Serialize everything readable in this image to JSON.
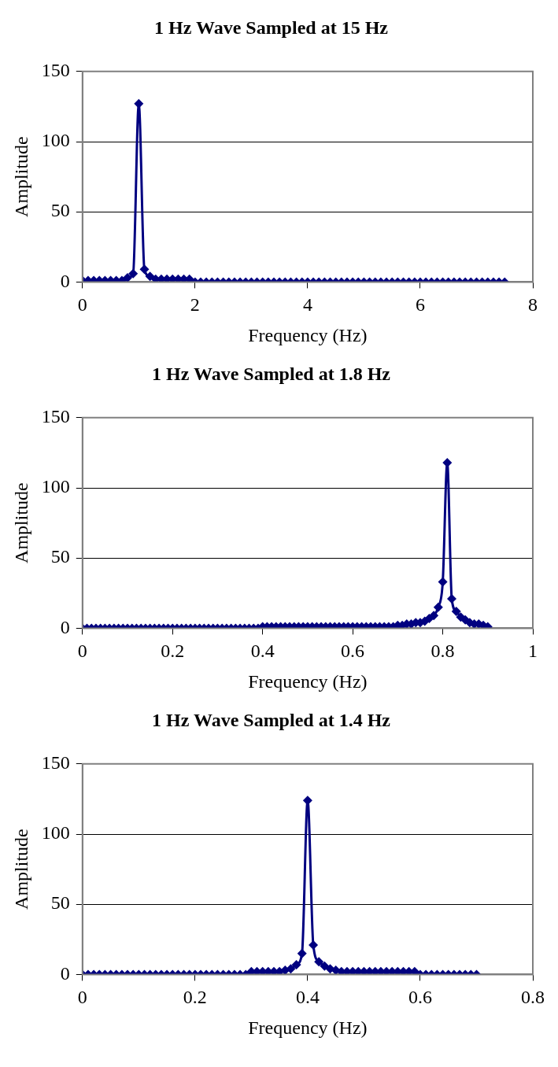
{
  "chart_data": [
    {
      "type": "line",
      "title": "1 Hz Wave Sampled at 15 Hz",
      "xlabel": "Frequency (Hz)",
      "ylabel": "Amplitude",
      "color": "#000080",
      "marker": "diamond",
      "line_style": "solid",
      "grid": "y",
      "legend": false,
      "xlim": [
        0,
        8
      ],
      "xticks": [
        0,
        2,
        4,
        6,
        8
      ],
      "ylim": [
        0,
        150
      ],
      "yticks": [
        0,
        50,
        100,
        150
      ],
      "x": [
        0,
        0.1,
        0.2,
        0.3,
        0.4,
        0.5,
        0.6,
        0.7,
        0.8,
        0.9,
        1.0,
        1.1,
        1.2,
        1.3,
        1.4,
        1.5,
        1.6,
        1.7,
        1.8,
        1.9,
        2.0,
        2.1,
        2.2,
        2.3,
        2.4,
        2.5,
        2.6,
        2.7,
        2.8,
        2.9,
        3.0,
        3.1,
        3.2,
        3.3,
        3.4,
        3.5,
        3.6,
        3.7,
        3.8,
        3.9,
        4.0,
        4.1,
        4.2,
        4.3,
        4.4,
        4.5,
        4.6,
        4.7,
        4.8,
        4.9,
        5.0,
        5.1,
        5.2,
        5.3,
        5.4,
        5.5,
        5.6,
        5.7,
        5.8,
        5.9,
        6.0,
        6.1,
        6.2,
        6.3,
        6.4,
        6.5,
        6.6,
        6.7,
        6.8,
        6.9,
        7.0,
        7.1,
        7.2,
        7.3,
        7.4,
        7.5
      ],
      "values": [
        1,
        1,
        1,
        1,
        1,
        1,
        1,
        1,
        3,
        6,
        127,
        9,
        4,
        2,
        2,
        2,
        2,
        2,
        2,
        2,
        0,
        0,
        0,
        0,
        0,
        0,
        0,
        0,
        0,
        0,
        0,
        0,
        0,
        0,
        0,
        0,
        0,
        0,
        0,
        0,
        0,
        0,
        0,
        0,
        0,
        0,
        0,
        0,
        0,
        0,
        0,
        0,
        0,
        0,
        0,
        0,
        0,
        0,
        0,
        0,
        0,
        0,
        0,
        0,
        0,
        0,
        0,
        0,
        0,
        0,
        0,
        0,
        0,
        0,
        0,
        0
      ]
    },
    {
      "type": "line",
      "title": "1 Hz Wave Sampled at 1.8 Hz",
      "xlabel": "Frequency (Hz)",
      "ylabel": "Amplitude",
      "color": "#000080",
      "marker": "diamond",
      "line_style": "solid",
      "grid": "y",
      "legend": false,
      "xlim": [
        0,
        1
      ],
      "xticks": [
        0,
        {
          "value": 0.2,
          "label": "0.2"
        },
        {
          "value": 0.4,
          "label": "0.4"
        },
        {
          "value": 0.6,
          "label": "0.6"
        },
        {
          "value": 0.8,
          "label": "0.8"
        },
        1
      ],
      "ylim": [
        0,
        150
      ],
      "yticks": [
        0,
        50,
        100,
        150
      ],
      "x": [
        0,
        0.01,
        0.02,
        0.03,
        0.04,
        0.05,
        0.06,
        0.07,
        0.08,
        0.09,
        0.1,
        0.11,
        0.12,
        0.13,
        0.14,
        0.15,
        0.16,
        0.17,
        0.18,
        0.19,
        0.2,
        0.21,
        0.22,
        0.23,
        0.24,
        0.25,
        0.26,
        0.27,
        0.28,
        0.29,
        0.3,
        0.31,
        0.32,
        0.33,
        0.34,
        0.35,
        0.36,
        0.37,
        0.38,
        0.39,
        0.4,
        0.41,
        0.42,
        0.43,
        0.44,
        0.45,
        0.46,
        0.47,
        0.48,
        0.49,
        0.5,
        0.51,
        0.52,
        0.53,
        0.54,
        0.55,
        0.56,
        0.57,
        0.58,
        0.59,
        0.6,
        0.61,
        0.62,
        0.63,
        0.64,
        0.65,
        0.66,
        0.67,
        0.68,
        0.69,
        0.7,
        0.71,
        0.72,
        0.73,
        0.74,
        0.75,
        0.76,
        0.77,
        0.78,
        0.79,
        0.8,
        0.81,
        0.82,
        0.83,
        0.84,
        0.85,
        0.86,
        0.87,
        0.88,
        0.89,
        0.9
      ],
      "values": [
        0,
        0,
        0,
        0,
        0,
        0,
        0,
        0,
        0,
        0,
        0,
        0,
        0,
        0,
        0,
        0,
        0,
        0,
        0,
        0,
        0,
        0,
        0,
        0,
        0,
        0,
        0,
        0,
        0,
        0,
        0,
        0,
        0,
        0,
        0,
        0,
        0,
        0,
        0,
        0,
        1,
        1,
        1,
        1,
        1,
        1,
        1,
        1,
        1,
        1,
        1,
        1,
        1,
        1,
        1,
        1,
        1,
        1,
        1,
        1,
        1,
        1,
        1,
        1,
        1,
        1,
        1,
        1,
        1,
        1,
        2,
        2,
        3,
        3,
        4,
        4,
        5,
        7,
        9,
        15,
        33,
        118,
        21,
        12,
        8,
        6,
        4,
        3,
        3,
        2,
        1
      ]
    },
    {
      "type": "line",
      "title": "1 Hz Wave Sampled at 1.4 Hz",
      "xlabel": "Frequency (Hz)",
      "ylabel": "Amplitude",
      "color": "#000080",
      "marker": "diamond",
      "line_style": "solid",
      "grid": "y",
      "legend": false,
      "xlim": [
        0,
        0.8
      ],
      "xticks": [
        0,
        {
          "value": 0.2,
          "label": "0.2"
        },
        {
          "value": 0.4,
          "label": "0.4"
        },
        {
          "value": 0.6,
          "label": "0.6"
        },
        {
          "value": 0.8,
          "label": "0.8"
        }
      ],
      "ylim": [
        0,
        150
      ],
      "yticks": [
        0,
        50,
        100,
        150
      ],
      "x": [
        0,
        0.01,
        0.02,
        0.03,
        0.04,
        0.05,
        0.06,
        0.07,
        0.08,
        0.09,
        0.1,
        0.11,
        0.12,
        0.13,
        0.14,
        0.15,
        0.16,
        0.17,
        0.18,
        0.19,
        0.2,
        0.21,
        0.22,
        0.23,
        0.24,
        0.25,
        0.26,
        0.27,
        0.28,
        0.29,
        0.3,
        0.31,
        0.32,
        0.33,
        0.34,
        0.35,
        0.36,
        0.37,
        0.38,
        0.39,
        0.4,
        0.41,
        0.42,
        0.43,
        0.44,
        0.45,
        0.46,
        0.47,
        0.48,
        0.49,
        0.5,
        0.51,
        0.52,
        0.53,
        0.54,
        0.55,
        0.56,
        0.57,
        0.58,
        0.59,
        0.6,
        0.61,
        0.62,
        0.63,
        0.64,
        0.65,
        0.66,
        0.67,
        0.68,
        0.69,
        0.7
      ],
      "values": [
        0,
        0,
        0,
        0,
        0,
        0,
        0,
        0,
        0,
        0,
        0,
        0,
        0,
        0,
        0,
        0,
        0,
        0,
        0,
        0,
        0,
        0,
        0,
        0,
        0,
        0,
        0,
        0,
        0,
        0,
        2,
        2,
        2,
        2,
        2,
        2,
        3,
        4,
        7,
        15,
        124,
        21,
        9,
        6,
        4,
        3,
        2,
        2,
        2,
        2,
        2,
        2,
        2,
        2,
        2,
        2,
        2,
        2,
        2,
        2,
        0,
        0,
        0,
        0,
        0,
        0,
        0,
        0,
        0,
        0,
        0
      ]
    }
  ]
}
